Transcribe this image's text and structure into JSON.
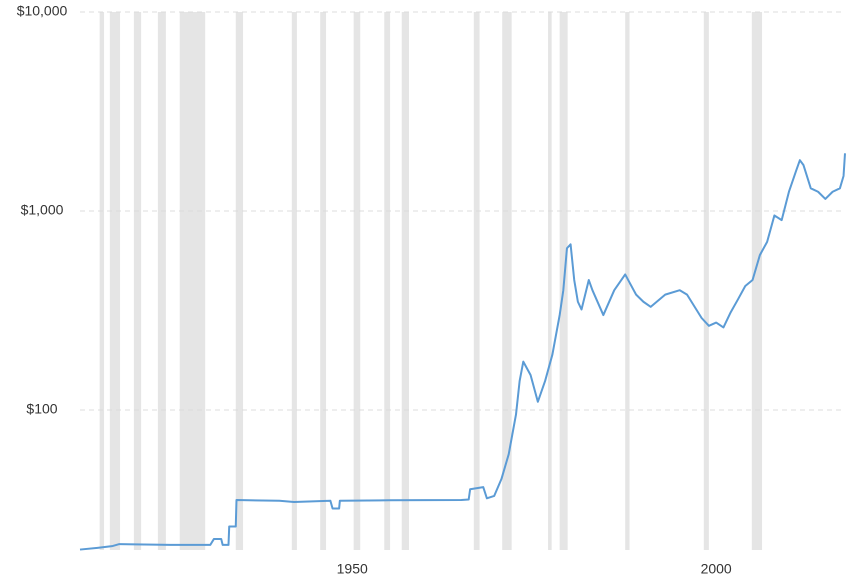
{
  "chart_data": {
    "type": "line",
    "log_scale": true,
    "grid": true,
    "color": "#5b9bd5",
    "shade_color": "#e5e5e5",
    "x": [
      1912.6,
      1915,
      1917,
      1918,
      1925,
      1930.5,
      1931,
      1932,
      1932.2,
      1933,
      1933.1,
      1934,
      1934.1,
      1940,
      1942,
      1947,
      1947.3,
      1948.2,
      1948.3,
      1955,
      1965,
      1966,
      1966.2,
      1968,
      1968.5,
      1969.5,
      1970.5,
      1971.5,
      1972.5,
      1973,
      1973.5,
      1974.5,
      1975.5,
      1976.5,
      1977.5,
      1978.5,
      1979,
      1979.5,
      1980,
      1980.5,
      1981,
      1981.5,
      1982.5,
      1983,
      1984.5,
      1986,
      1987.5,
      1989,
      1990,
      1991,
      1993,
      1995,
      1996,
      1998,
      1999,
      2000,
      2001,
      2002,
      2003,
      2004,
      2005,
      2006,
      2007,
      2008,
      2009,
      2010,
      2011,
      2011.5,
      2012,
      2013,
      2014,
      2015,
      2016,
      2017,
      2017.5,
      2017.7
    ],
    "values": [
      19.9,
      20.3,
      20.7,
      21.2,
      21.0,
      21.0,
      22.5,
      22.5,
      21.0,
      21.0,
      26,
      26,
      35.3,
      35.0,
      34.5,
      35,
      32,
      32,
      35,
      35.2,
      35.3,
      35.5,
      40,
      41,
      36,
      37,
      45,
      60,
      95,
      140,
      175,
      150,
      110,
      140,
      190,
      300,
      400,
      650,
      680,
      450,
      350,
      320,
      450,
      400,
      300,
      400,
      480,
      380,
      350,
      330,
      380,
      400,
      380,
      290,
      265,
      275,
      260,
      310,
      360,
      420,
      450,
      600,
      700,
      950,
      900,
      1250,
      1600,
      1800,
      1700,
      1300,
      1250,
      1150,
      1250,
      1300,
      1500,
      1950
    ],
    "shaded_periods": [
      [
        1915.3,
        1915.9
      ],
      [
        1916.7,
        1918.1
      ],
      [
        1920.0,
        1921.0
      ],
      [
        1923.3,
        1924.4
      ],
      [
        1926.3,
        1929.8
      ],
      [
        1934.0,
        1935.0
      ],
      [
        1941.7,
        1942.4
      ],
      [
        1945.6,
        1946.4
      ],
      [
        1950.2,
        1951.1
      ],
      [
        1954.4,
        1955.2
      ],
      [
        1956.8,
        1957.8
      ],
      [
        1966.7,
        1967.5
      ],
      [
        1970.6,
        1971.9
      ],
      [
        1976.9,
        1977.4
      ],
      [
        1978.5,
        1979.6
      ],
      [
        1987.5,
        1988.1
      ],
      [
        1998.3,
        1999.0
      ],
      [
        2004.9,
        2006.3
      ]
    ],
    "xlim": [
      1912.6,
      2017.7
    ],
    "xticks": [
      1950,
      2000
    ],
    "ylim": [
      19.8,
      10000
    ],
    "yticks": [
      {
        "value": 100,
        "label": "$100"
      },
      {
        "value": 1000,
        "label": "$1,000"
      },
      {
        "value": 10000,
        "label": "$10,000"
      }
    ]
  }
}
